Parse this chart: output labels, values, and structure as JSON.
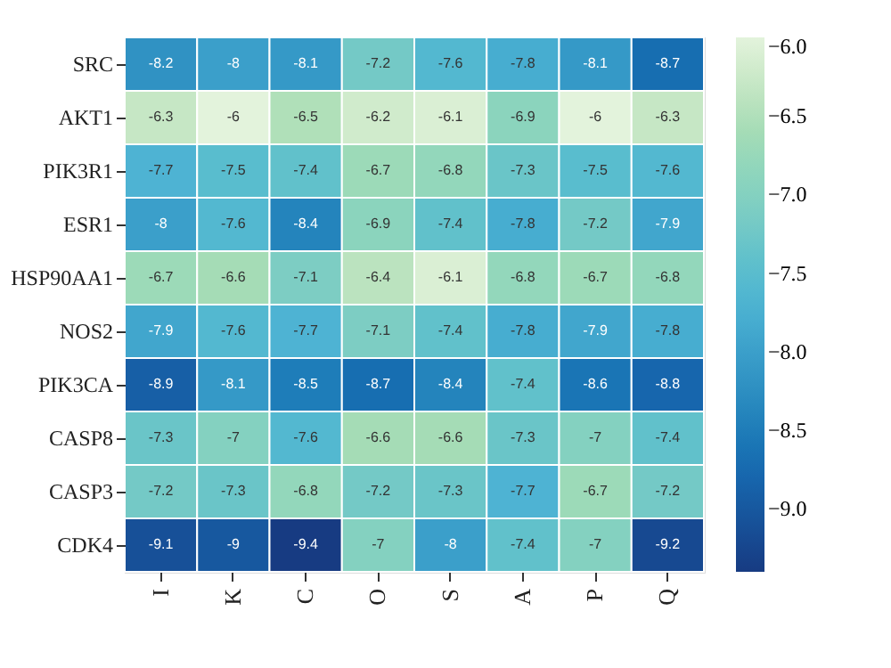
{
  "chart_data": {
    "type": "heatmap",
    "categories": [
      "I",
      "K",
      "C",
      "O",
      "S",
      "A",
      "P",
      "Q"
    ],
    "y_categories": [
      "SRC",
      "AKT1",
      "PIK3R1",
      "ESR1",
      "HSP90AA1",
      "NOS2",
      "PIK3CA",
      "CASP8",
      "CASP3",
      "CDK4"
    ],
    "cells": [
      [
        -8.2,
        -8,
        -8.1,
        -7.2,
        -7.6,
        -7.8,
        -8.1,
        -8.7
      ],
      [
        -6.3,
        -6,
        -6.5,
        -6.2,
        -6.1,
        -6.9,
        -6,
        -6.3
      ],
      [
        -7.7,
        -7.5,
        -7.4,
        -6.7,
        -6.8,
        -7.3,
        -7.5,
        -7.6
      ],
      [
        -8,
        -7.6,
        -8.4,
        -6.9,
        -7.4,
        -7.8,
        -7.2,
        -7.9
      ],
      [
        -6.7,
        -6.6,
        -7.1,
        -6.4,
        -6.1,
        -6.8,
        -6.7,
        -6.8
      ],
      [
        -7.9,
        -7.6,
        -7.7,
        -7.1,
        -7.4,
        -7.8,
        -7.9,
        -7.8
      ],
      [
        -8.9,
        -8.1,
        -8.5,
        -8.7,
        -8.4,
        -7.4,
        -8.6,
        -8.8
      ],
      [
        -7.3,
        -7,
        -7.6,
        -6.6,
        -6.6,
        -7.3,
        -7,
        -7.4
      ],
      [
        -7.2,
        -7.3,
        -6.8,
        -7.2,
        -7.3,
        -7.7,
        -6.7,
        -7.2
      ],
      [
        -9.1,
        -9,
        -9.4,
        -7,
        -8,
        -7.4,
        -7,
        -9.2
      ]
    ],
    "clim": [
      -9.4,
      -6.0
    ],
    "cticks": [
      {
        "value": -6.0,
        "label": "−6.0"
      },
      {
        "value": -6.5,
        "label": "−6.5"
      },
      {
        "value": -7.0,
        "label": "−7.0"
      },
      {
        "value": -7.5,
        "label": "−7.5"
      },
      {
        "value": -8.0,
        "label": "−8.0"
      },
      {
        "value": -8.5,
        "label": "−8.5"
      },
      {
        "value": -9.0,
        "label": "−9.0"
      }
    ],
    "data_labels": true
  }
}
